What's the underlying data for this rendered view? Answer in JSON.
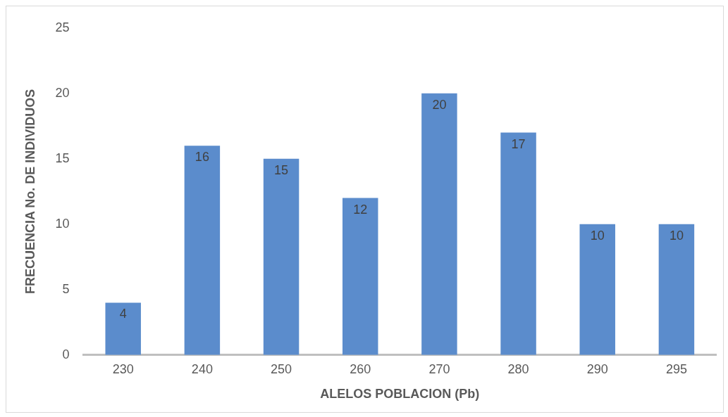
{
  "chart_data": {
    "type": "bar",
    "xlabel": "ALELOS POBLACION (Pb)",
    "ylabel": "FRECUENCIA No. DE INDIVIDUOS",
    "categories": [
      "230",
      "240",
      "250",
      "260",
      "270",
      "280",
      "290",
      "295"
    ],
    "values": [
      4,
      16,
      15,
      12,
      20,
      17,
      10,
      10
    ],
    "color": "#5b8ccc",
    "ylim": [
      0,
      25
    ],
    "yticks": [
      0,
      5,
      10,
      15,
      20,
      25
    ],
    "grid": false,
    "legend": false,
    "data_labels": true
  }
}
